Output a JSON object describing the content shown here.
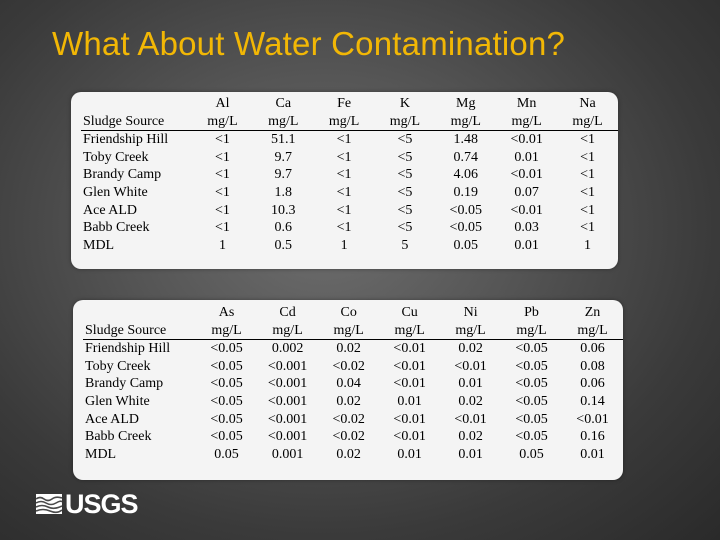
{
  "title": "What About Water Contamination?",
  "colors": {
    "title": "#f2b705",
    "panel": "#f4f4f4"
  },
  "table1": {
    "header_row1": [
      "",
      "Al",
      "Ca",
      "Fe",
      "K",
      "Mg",
      "Mn",
      "Na"
    ],
    "header_row2": [
      "Sludge Source",
      "mg/L",
      "mg/L",
      "mg/L",
      "mg/L",
      "mg/L",
      "mg/L",
      "mg/L"
    ],
    "rows": [
      [
        "Friendship Hill",
        "<1",
        "51.1",
        "<1",
        "<5",
        "1.48",
        "<0.01",
        "<1"
      ],
      [
        "Toby Creek",
        "<1",
        "9.7",
        "<1",
        "<5",
        "0.74",
        "0.01",
        "<1"
      ],
      [
        "Brandy Camp",
        "<1",
        "9.7",
        "<1",
        "<5",
        "4.06",
        "<0.01",
        "<1"
      ],
      [
        "Glen White",
        "<1",
        "1.8",
        "<1",
        "<5",
        "0.19",
        "0.07",
        "<1"
      ],
      [
        "Ace ALD",
        "<1",
        "10.3",
        "<1",
        "<5",
        "<0.05",
        "<0.01",
        "<1"
      ],
      [
        "Babb Creek",
        "<1",
        "0.6",
        "<1",
        "<5",
        "<0.05",
        "0.03",
        "<1"
      ],
      [
        "MDL",
        "1",
        "0.5",
        "1",
        "5",
        "0.05",
        "0.01",
        "1"
      ]
    ]
  },
  "table2": {
    "header_row1": [
      "",
      "As",
      "Cd",
      "Co",
      "Cu",
      "Ni",
      "Pb",
      "Zn"
    ],
    "header_row2": [
      "Sludge Source",
      "mg/L",
      "mg/L",
      "mg/L",
      "mg/L",
      "mg/L",
      "mg/L",
      "mg/L"
    ],
    "rows": [
      [
        "Friendship Hill",
        "<0.05",
        "0.002",
        "0.02",
        "<0.01",
        "0.02",
        "<0.05",
        "0.06"
      ],
      [
        "Toby Creek",
        "<0.05",
        "<0.001",
        "<0.02",
        "<0.01",
        "<0.01",
        "<0.05",
        "0.08"
      ],
      [
        "Brandy Camp",
        "<0.05",
        "<0.001",
        "0.04",
        "<0.01",
        "0.01",
        "<0.05",
        "0.06"
      ],
      [
        "Glen White",
        "<0.05",
        "<0.001",
        "0.02",
        "0.01",
        "0.02",
        "<0.05",
        "0.14"
      ],
      [
        "Ace ALD",
        "<0.05",
        "<0.001",
        "<0.02",
        "<0.01",
        "<0.01",
        "<0.05",
        "<0.01"
      ],
      [
        "Babb Creek",
        "<0.05",
        "<0.001",
        "<0.02",
        "<0.01",
        "0.02",
        "<0.05",
        "0.16"
      ],
      [
        "MDL",
        "0.05",
        "0.001",
        "0.02",
        "0.01",
        "0.01",
        "0.05",
        "0.01"
      ]
    ]
  },
  "logo": {
    "text": "USGS",
    "icon": "usgs-wave-icon"
  }
}
